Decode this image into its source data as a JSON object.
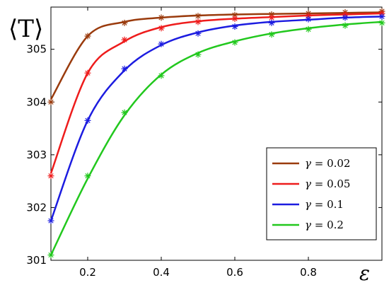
{
  "chart_data": {
    "type": "line",
    "title": "",
    "xlabel": "ε",
    "ylabel": "⟨T⟩",
    "xlim": [
      0.1,
      1.0
    ],
    "ylim": [
      301,
      305.8
    ],
    "x_ticks": [
      0.2,
      0.4,
      0.6,
      0.8
    ],
    "x_tick_labels": [
      "0.2",
      "0.4",
      "0.6",
      "0.8"
    ],
    "y_ticks": [
      301,
      302,
      303,
      304,
      305
    ],
    "y_tick_labels": [
      "301",
      "302",
      "303",
      "304",
      "305"
    ],
    "grid": false,
    "legend_position": "lower-right",
    "x": [
      0.1,
      0.2,
      0.3,
      0.4,
      0.5,
      0.6,
      0.7,
      0.8,
      0.9,
      1.0
    ],
    "series": [
      {
        "name": "γ = 0.02",
        "color": "#9a3b0d",
        "line_values": [
          304.05,
          305.25,
          305.52,
          305.6,
          305.64,
          305.66,
          305.67,
          305.68,
          305.69,
          305.7
        ],
        "marker_values": [
          304.0,
          305.25,
          305.5,
          305.6,
          305.63,
          305.65,
          305.66,
          305.68,
          305.7,
          305.72
        ]
      },
      {
        "name": "γ = 0.05",
        "color": "#ee1c1c",
        "line_values": [
          302.65,
          304.55,
          305.15,
          305.42,
          305.53,
          305.58,
          305.61,
          305.64,
          305.66,
          305.68
        ],
        "marker_values": [
          302.6,
          304.55,
          305.18,
          305.4,
          305.52,
          305.58,
          305.6,
          305.63,
          305.66,
          305.68
        ]
      },
      {
        "name": "γ = 0.1",
        "color": "#1c1ce0",
        "line_values": [
          301.75,
          303.65,
          304.6,
          305.08,
          305.32,
          305.45,
          305.52,
          305.56,
          305.6,
          305.62
        ],
        "marker_values": [
          301.75,
          303.65,
          304.63,
          305.1,
          305.3,
          305.43,
          305.5,
          305.57,
          305.6,
          305.62
        ]
      },
      {
        "name": "γ = 0.2",
        "color": "#22c81e",
        "line_values": [
          301.1,
          302.55,
          303.75,
          304.52,
          304.93,
          305.15,
          305.3,
          305.4,
          305.47,
          305.52
        ],
        "marker_values": [
          301.1,
          302.6,
          303.8,
          304.5,
          304.9,
          305.13,
          305.28,
          305.38,
          305.45,
          305.5
        ]
      }
    ],
    "legend": [
      {
        "label": "γ = 0.02",
        "sym": "γ = ",
        "num": "0.02"
      },
      {
        "label": "γ = 0.05",
        "sym": "γ = ",
        "num": "0.05"
      },
      {
        "label": "γ = 0.1",
        "sym": "γ = ",
        "num": "0.1"
      },
      {
        "label": "γ = 0.2",
        "sym": "γ = ",
        "num": "0.2"
      }
    ]
  }
}
